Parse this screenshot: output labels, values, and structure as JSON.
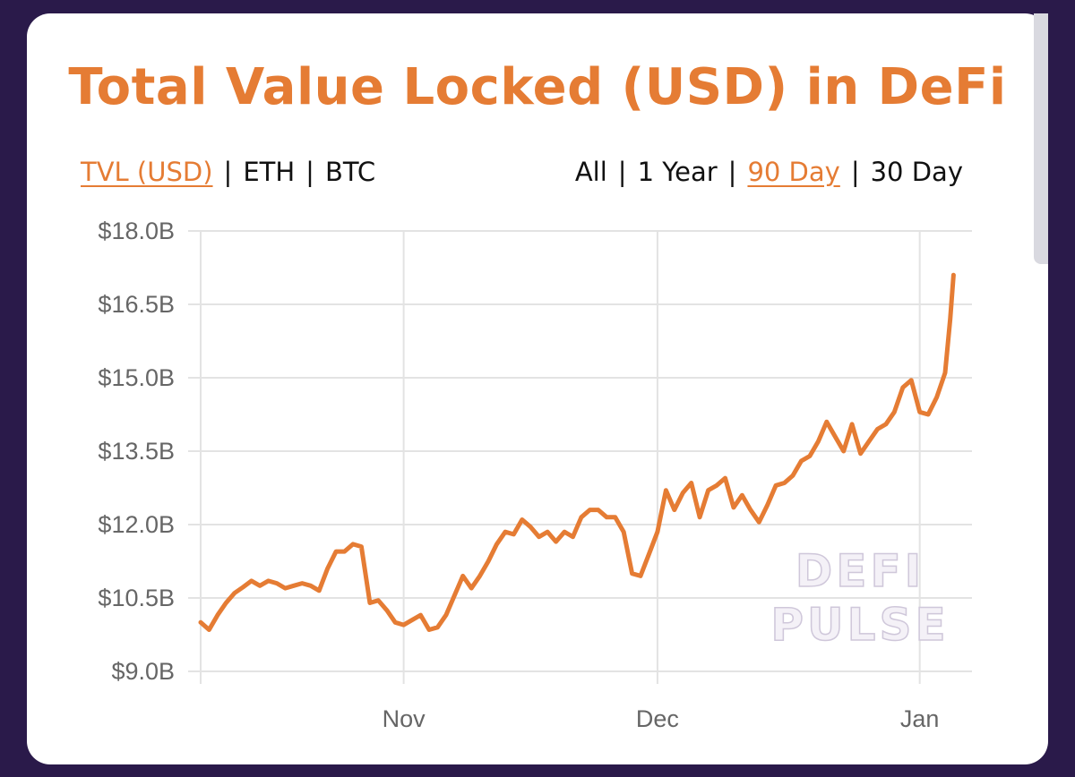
{
  "title": "Total Value Locked (USD) in DeFi",
  "metric_tabs": [
    {
      "label": "TVL (USD)",
      "active": true
    },
    {
      "label": "ETH",
      "active": false
    },
    {
      "label": "BTC",
      "active": false
    }
  ],
  "range_tabs": [
    {
      "label": "All",
      "active": false
    },
    {
      "label": "1 Year",
      "active": false
    },
    {
      "label": "90 Day",
      "active": true
    },
    {
      "label": "30 Day",
      "active": false
    }
  ],
  "separator": "|",
  "watermark": [
    "DEFI",
    "PULSE"
  ],
  "colors": {
    "accent": "#e57c34",
    "background": "#2a1a4a",
    "card": "#ffffff",
    "grid": "#e3e3e3",
    "tick_text": "#666666",
    "watermark": "#dcd6e6"
  },
  "chart_data": {
    "type": "line",
    "title": "Total Value Locked (USD) in DeFi",
    "xlabel": "",
    "ylabel": "",
    "ylim": [
      9.0,
      18.0
    ],
    "y_ticks": [
      9.0,
      10.5,
      12.0,
      13.5,
      15.0,
      16.5,
      18.0
    ],
    "y_tick_labels": [
      "$9.0B",
      "$10.5B",
      "$12.0B",
      "$13.5B",
      "$15.0B",
      "$16.5B",
      "$18.0B"
    ],
    "x_ticks": [
      {
        "label": "Nov",
        "day": 24
      },
      {
        "label": "Dec",
        "day": 54
      },
      {
        "label": "Jan",
        "day": 85
      }
    ],
    "xlim": [
      0,
      88
    ],
    "grid": true,
    "legend": "none",
    "series": [
      {
        "points": [
          [
            0,
            10.0
          ],
          [
            1,
            9.85
          ],
          [
            2,
            10.15
          ],
          [
            3,
            10.4
          ],
          [
            4,
            10.6
          ],
          [
            5,
            10.72
          ],
          [
            6,
            10.85
          ],
          [
            7,
            10.75
          ],
          [
            8,
            10.85
          ],
          [
            9,
            10.8
          ],
          [
            10,
            10.7
          ],
          [
            11,
            10.75
          ],
          [
            12,
            10.8
          ],
          [
            13,
            10.75
          ],
          [
            14,
            10.65
          ],
          [
            15,
            11.1
          ],
          [
            16,
            11.45
          ],
          [
            17,
            11.45
          ],
          [
            18,
            11.6
          ],
          [
            19,
            11.55
          ],
          [
            20,
            10.4
          ],
          [
            21,
            10.45
          ],
          [
            22,
            10.25
          ],
          [
            23,
            10.0
          ],
          [
            24,
            9.95
          ],
          [
            25,
            10.05
          ],
          [
            26,
            10.15
          ],
          [
            27,
            9.85
          ],
          [
            28,
            9.9
          ],
          [
            29,
            10.15
          ],
          [
            30,
            10.55
          ],
          [
            31,
            10.95
          ],
          [
            32,
            10.7
          ],
          [
            33,
            10.95
          ],
          [
            34,
            11.25
          ],
          [
            35,
            11.6
          ],
          [
            36,
            11.85
          ],
          [
            37,
            11.8
          ],
          [
            38,
            12.1
          ],
          [
            39,
            11.95
          ],
          [
            40,
            11.75
          ],
          [
            41,
            11.85
          ],
          [
            42,
            11.65
          ],
          [
            43,
            11.85
          ],
          [
            44,
            11.75
          ],
          [
            45,
            12.15
          ],
          [
            46,
            12.3
          ],
          [
            47,
            12.3
          ],
          [
            48,
            12.15
          ],
          [
            49,
            12.15
          ],
          [
            50,
            11.85
          ],
          [
            51,
            11.0
          ],
          [
            52,
            10.95
          ],
          [
            53,
            11.4
          ],
          [
            54,
            11.85
          ],
          [
            55,
            12.7
          ],
          [
            56,
            12.3
          ],
          [
            57,
            12.65
          ],
          [
            58,
            12.85
          ],
          [
            59,
            12.15
          ],
          [
            60,
            12.7
          ],
          [
            61,
            12.8
          ],
          [
            62,
            12.95
          ],
          [
            63,
            12.35
          ],
          [
            64,
            12.6
          ],
          [
            65,
            12.3
          ],
          [
            66,
            12.05
          ],
          [
            67,
            12.4
          ],
          [
            68,
            12.8
          ],
          [
            69,
            12.85
          ],
          [
            70,
            13.0
          ],
          [
            71,
            13.3
          ],
          [
            72,
            13.4
          ],
          [
            73,
            13.7
          ],
          [
            74,
            14.1
          ],
          [
            75,
            13.8
          ],
          [
            76,
            13.5
          ],
          [
            77,
            14.05
          ],
          [
            78,
            13.45
          ],
          [
            79,
            13.7
          ],
          [
            80,
            13.95
          ],
          [
            81,
            14.05
          ],
          [
            82,
            14.3
          ],
          [
            83,
            14.8
          ],
          [
            84,
            14.95
          ],
          [
            85,
            14.3
          ],
          [
            86,
            14.25
          ],
          [
            87,
            14.6
          ],
          [
            88,
            15.1
          ],
          [
            88.6,
            16.2
          ],
          [
            89,
            17.1
          ]
        ]
      }
    ]
  }
}
